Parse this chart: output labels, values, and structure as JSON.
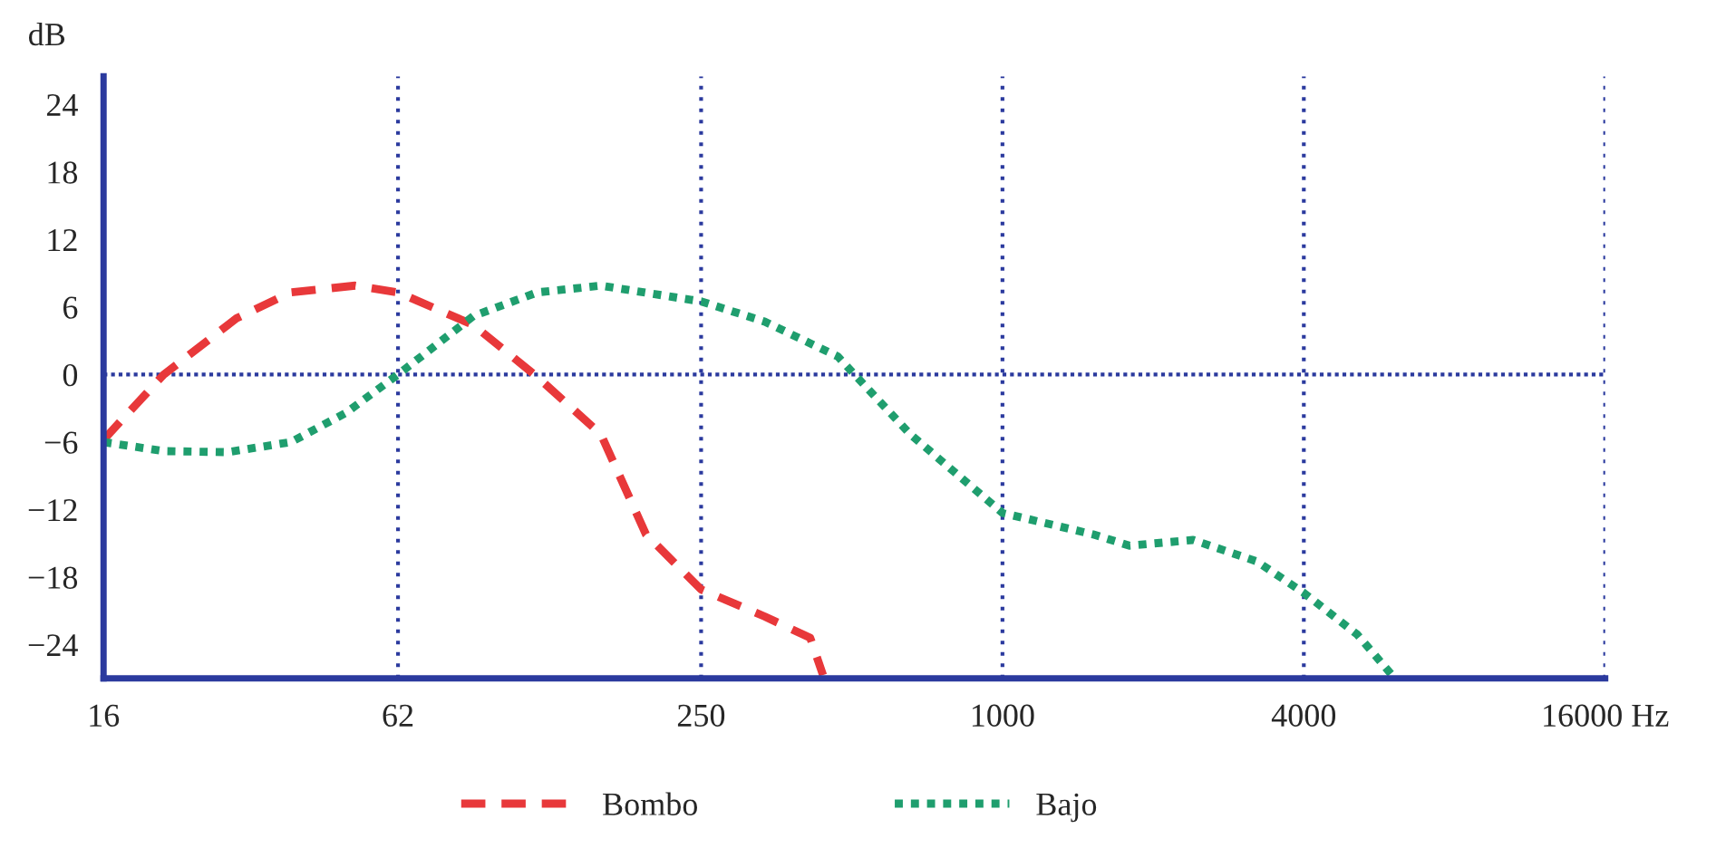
{
  "chart_data": {
    "type": "line",
    "ylabel": "dB",
    "log": "x",
    "xlim": [
      16,
      16000
    ],
    "ylim": [
      -27,
      26.5
    ],
    "xticks": [
      16,
      62,
      250,
      1000,
      4000,
      {
        "value": 16000,
        "label": "16000 Hz"
      }
    ],
    "yticks": [
      {
        "value": -24,
        "label": "−24"
      },
      {
        "value": -18,
        "label": "−18"
      },
      {
        "value": -12,
        "label": "−12"
      },
      {
        "value": -6,
        "label": "−6"
      },
      0,
      6,
      12,
      18,
      24
    ],
    "grid": "x",
    "legend": "bottom",
    "ref_lines": [
      {
        "axis": "y",
        "value": 0,
        "color": "#2b3a9e",
        "line_style": "dotted"
      }
    ],
    "series": [
      {
        "name": "Bombo",
        "color": "#e8383a",
        "line_style": "dashed",
        "x": [
          16,
          21.1,
          29.5,
          37.9,
          50.9,
          62,
          87.7,
          117.6,
          157.6,
          194,
          250,
          335,
          413,
          438
        ],
        "values": [
          -5.8,
          0,
          5.0,
          7.3,
          7.9,
          7.3,
          4.4,
          -0.2,
          -5.3,
          -14.2,
          -19.1,
          -21.5,
          -23.4,
          -26.7
        ]
      },
      {
        "name": "Bajo",
        "color": "#1f9e6e",
        "line_style": "dotted",
        "x": [
          16,
          21.1,
          28.3,
          37.9,
          48.8,
          62,
          87.7,
          117.6,
          157.6,
          250,
          335,
          469,
          654,
          1000,
          1516,
          1793,
          2404,
          3222,
          4000,
          5114,
          6050
        ],
        "values": [
          -6.0,
          -6.8,
          -6.9,
          -6.0,
          -3.4,
          0,
          5.2,
          7.3,
          7.9,
          6.5,
          4.7,
          1.6,
          -5.3,
          -12.3,
          -14.2,
          -15.2,
          -14.7,
          -16.6,
          -19.4,
          -23.1,
          -26.9
        ]
      }
    ]
  }
}
